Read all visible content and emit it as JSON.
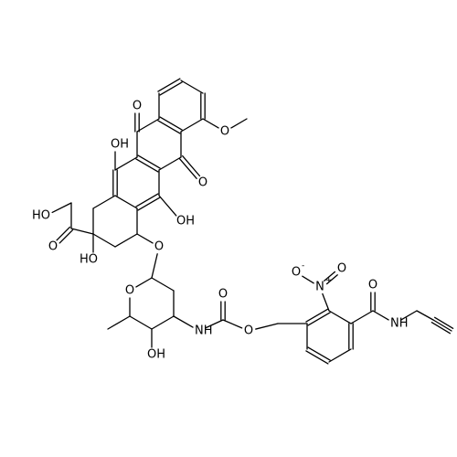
{
  "molecule": {
    "atoms": [
      {
        "text": "O"
      },
      {
        "text": "O"
      },
      {
        "text": "O"
      },
      {
        "text": "OH"
      },
      {
        "text": "OH"
      },
      {
        "text": "HO"
      },
      {
        "text": "O"
      },
      {
        "text": "HO"
      },
      {
        "text": "O"
      },
      {
        "text": "O"
      },
      {
        "text": "OH"
      },
      {
        "text": "NH"
      },
      {
        "text": "O"
      },
      {
        "text": "O"
      },
      {
        "text": "O",
        "charge": "-"
      },
      {
        "text": "N",
        "charge": "+"
      },
      {
        "text": "O"
      },
      {
        "text": "O"
      },
      {
        "text": "NH"
      }
    ]
  }
}
